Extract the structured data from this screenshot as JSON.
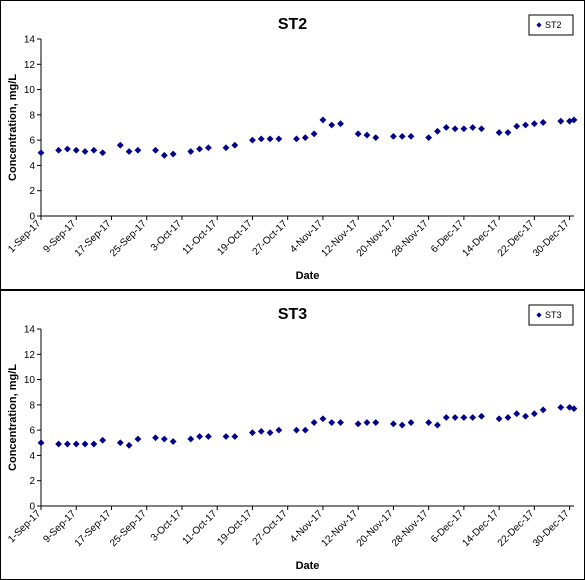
{
  "chart_data": [
    {
      "type": "scatter",
      "title": "ST2",
      "xlabel": "Date",
      "ylabel": "Concentration, mg/L",
      "ylim": [
        0,
        14
      ],
      "yticks": [
        0,
        2,
        4,
        6,
        8,
        10,
        12,
        14
      ],
      "xlim": [
        "2017-09-01",
        "2017-12-31"
      ],
      "xtick_labels": [
        "1-Sep-17",
        "9-Sep-17",
        "17-Sep-17",
        "25-Sep-17",
        "3-Oct-17",
        "11-Oct-17",
        "19-Oct-17",
        "27-Oct-17",
        "4-Nov-17",
        "12-Nov-17",
        "20-Nov-17",
        "28-Nov-17",
        "6-Dec-17",
        "14-Dec-17",
        "22-Dec-17",
        "30-Dec-17"
      ],
      "marker_color": "#00008B",
      "legend_position": "top-right",
      "grid": false,
      "series": [
        {
          "name": "ST2",
          "x": [
            "2017-09-01",
            "2017-09-05",
            "2017-09-07",
            "2017-09-09",
            "2017-09-11",
            "2017-09-13",
            "2017-09-15",
            "2017-09-19",
            "2017-09-21",
            "2017-09-23",
            "2017-09-27",
            "2017-09-29",
            "2017-10-01",
            "2017-10-05",
            "2017-10-07",
            "2017-10-09",
            "2017-10-13",
            "2017-10-15",
            "2017-10-19",
            "2017-10-21",
            "2017-10-23",
            "2017-10-25",
            "2017-10-29",
            "2017-10-31",
            "2017-11-02",
            "2017-11-04",
            "2017-11-06",
            "2017-11-08",
            "2017-11-12",
            "2017-11-14",
            "2017-11-16",
            "2017-11-20",
            "2017-11-22",
            "2017-11-24",
            "2017-11-28",
            "2017-11-30",
            "2017-12-02",
            "2017-12-04",
            "2017-12-06",
            "2017-12-08",
            "2017-12-10",
            "2017-12-14",
            "2017-12-16",
            "2017-12-18",
            "2017-12-20",
            "2017-12-22",
            "2017-12-24",
            "2017-12-28",
            "2017-12-30",
            "2017-12-31"
          ],
          "y": [
            5.0,
            5.2,
            5.3,
            5.2,
            5.1,
            5.2,
            5.0,
            5.6,
            5.1,
            5.2,
            5.2,
            4.8,
            4.9,
            5.1,
            5.3,
            5.4,
            5.4,
            5.6,
            6.0,
            6.1,
            6.1,
            6.1,
            6.1,
            6.2,
            6.5,
            7.6,
            7.2,
            7.3,
            6.5,
            6.4,
            6.2,
            6.3,
            6.3,
            6.3,
            6.2,
            6.7,
            7.0,
            6.9,
            6.9,
            7.0,
            6.9,
            6.6,
            6.6,
            7.1,
            7.2,
            7.3,
            7.4,
            7.5,
            7.5,
            7.6
          ]
        }
      ]
    },
    {
      "type": "scatter",
      "title": "ST3",
      "xlabel": "Date",
      "ylabel": "Concentration, mg/L",
      "ylim": [
        0,
        14
      ],
      "yticks": [
        0,
        2,
        4,
        6,
        8,
        10,
        12,
        14
      ],
      "xlim": [
        "2017-09-01",
        "2017-12-31"
      ],
      "xtick_labels": [
        "1-Sep-17",
        "9-Sep-17",
        "17-Sep-17",
        "25-Sep-17",
        "3-Oct-17",
        "11-Oct-17",
        "19-Oct-17",
        "27-Oct-17",
        "4-Nov-17",
        "12-Nov-17",
        "20-Nov-17",
        "28-Nov-17",
        "6-Dec-17",
        "14-Dec-17",
        "22-Dec-17",
        "30-Dec-17"
      ],
      "marker_color": "#00008B",
      "legend_position": "top-right",
      "grid": false,
      "series": [
        {
          "name": "ST3",
          "x": [
            "2017-09-01",
            "2017-09-05",
            "2017-09-07",
            "2017-09-09",
            "2017-09-11",
            "2017-09-13",
            "2017-09-15",
            "2017-09-19",
            "2017-09-21",
            "2017-09-23",
            "2017-09-27",
            "2017-09-29",
            "2017-10-01",
            "2017-10-05",
            "2017-10-07",
            "2017-10-09",
            "2017-10-13",
            "2017-10-15",
            "2017-10-19",
            "2017-10-21",
            "2017-10-23",
            "2017-10-25",
            "2017-10-29",
            "2017-10-31",
            "2017-11-02",
            "2017-11-04",
            "2017-11-06",
            "2017-11-08",
            "2017-11-12",
            "2017-11-14",
            "2017-11-16",
            "2017-11-20",
            "2017-11-22",
            "2017-11-24",
            "2017-11-28",
            "2017-11-30",
            "2017-12-02",
            "2017-12-04",
            "2017-12-06",
            "2017-12-08",
            "2017-12-10",
            "2017-12-14",
            "2017-12-16",
            "2017-12-18",
            "2017-12-20",
            "2017-12-22",
            "2017-12-24",
            "2017-12-28",
            "2017-12-30",
            "2017-12-31"
          ],
          "y": [
            5.0,
            4.9,
            4.9,
            4.9,
            4.9,
            4.9,
            5.2,
            5.0,
            4.8,
            5.3,
            5.4,
            5.3,
            5.1,
            5.3,
            5.5,
            5.5,
            5.5,
            5.5,
            5.8,
            5.9,
            5.8,
            6.0,
            6.0,
            6.0,
            6.6,
            6.9,
            6.6,
            6.6,
            6.5,
            6.6,
            6.6,
            6.5,
            6.4,
            6.6,
            6.6,
            6.4,
            7.0,
            7.0,
            7.0,
            7.0,
            7.1,
            6.9,
            7.0,
            7.3,
            7.1,
            7.3,
            7.6,
            7.8,
            7.8,
            7.7
          ]
        }
      ]
    }
  ]
}
